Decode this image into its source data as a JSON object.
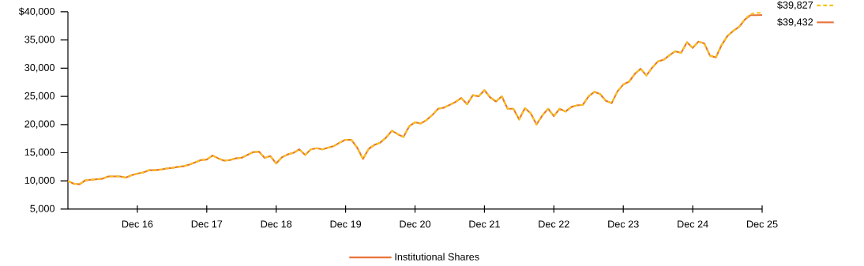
{
  "chart_data": {
    "type": "line",
    "x": [
      "2015-12",
      "2016-01",
      "2016-02",
      "2016-03",
      "2016-04",
      "2016-05",
      "2016-06",
      "2016-07",
      "2016-08",
      "2016-09",
      "2016-10",
      "2016-11",
      "2016-12",
      "2017-01",
      "2017-02",
      "2017-03",
      "2017-04",
      "2017-05",
      "2017-06",
      "2017-07",
      "2017-08",
      "2017-09",
      "2017-10",
      "2017-11",
      "2017-12",
      "2018-01",
      "2018-02",
      "2018-03",
      "2018-04",
      "2018-05",
      "2018-06",
      "2018-07",
      "2018-08",
      "2018-09",
      "2018-10",
      "2018-11",
      "2018-12",
      "2019-01",
      "2019-02",
      "2019-03",
      "2019-04",
      "2019-05",
      "2019-06",
      "2019-07",
      "2019-08",
      "2019-09",
      "2019-10",
      "2019-11",
      "2019-12",
      "2020-01",
      "2020-02",
      "2020-03",
      "2020-04",
      "2020-05",
      "2020-06",
      "2020-07",
      "2020-08",
      "2020-09",
      "2020-10",
      "2020-11",
      "2020-12",
      "2021-01",
      "2021-02",
      "2021-03",
      "2021-04",
      "2021-05",
      "2021-06",
      "2021-07",
      "2021-08",
      "2021-09",
      "2021-10",
      "2021-11",
      "2021-12",
      "2022-01",
      "2022-02",
      "2022-03",
      "2022-04",
      "2022-05",
      "2022-06",
      "2022-07",
      "2022-08",
      "2022-09",
      "2022-10",
      "2022-11",
      "2022-12",
      "2023-01",
      "2023-02",
      "2023-03",
      "2023-04",
      "2023-05",
      "2023-06",
      "2023-07",
      "2023-08",
      "2023-09",
      "2023-10",
      "2023-11",
      "2023-12",
      "2024-01",
      "2024-02",
      "2024-03",
      "2024-04",
      "2024-05",
      "2024-06",
      "2024-07",
      "2024-08",
      "2024-09",
      "2024-10",
      "2024-11",
      "2024-12",
      "2025-01",
      "2025-02",
      "2025-03",
      "2025-04",
      "2025-05",
      "2025-06",
      "2025-07",
      "2025-08",
      "2025-09",
      "2025-10",
      "2025-11",
      "2025-12"
    ],
    "series": [
      {
        "name": "Institutional Shares",
        "color": "#e8743b",
        "line_style": "solid",
        "values": [
          10000,
          9500,
          9400,
          10100,
          10200,
          10300,
          10400,
          10800,
          10800,
          10800,
          10600,
          11000,
          11300,
          11500,
          11900,
          11900,
          12000,
          12200,
          12300,
          12500,
          12600,
          12900,
          13300,
          13700,
          13800,
          14500,
          14000,
          13600,
          13700,
          14000,
          14100,
          14600,
          15100,
          15200,
          14100,
          14400,
          13100,
          14200,
          14700,
          15000,
          15600,
          14600,
          15600,
          15800,
          15600,
          15900,
          16200,
          16800,
          17300,
          17300,
          15900,
          13900,
          15700,
          16400,
          16800,
          17700,
          18900,
          18300,
          17800,
          19700,
          20400,
          20200,
          20800,
          21700,
          22800,
          23000,
          23500,
          24000,
          24700,
          23600,
          25200,
          25000,
          26100,
          24800,
          24100,
          25000,
          22800,
          22800,
          20900,
          22900,
          22000,
          20000,
          21600,
          22800,
          21500,
          22800,
          22300,
          23100,
          23400,
          23500,
          25000,
          25800,
          25400,
          24200,
          23800,
          25900,
          27100,
          27600,
          29000,
          29900,
          28700,
          30100,
          31200,
          31500,
          32300,
          33000,
          32700,
          34600,
          33600,
          34700,
          34400,
          32200,
          31900,
          34100,
          35700,
          36600,
          37300,
          38600,
          39400,
          39400,
          39432
        ]
      },
      {
        "color": "#f5c518",
        "line_style": "dashed",
        "values": [
          10000,
          9500,
          9400,
          10100,
          10200,
          10300,
          10400,
          10800,
          10800,
          10800,
          10600,
          11000,
          11300,
          11500,
          11900,
          11900,
          12000,
          12200,
          12300,
          12500,
          12600,
          12900,
          13300,
          13700,
          13800,
          14500,
          14000,
          13600,
          13700,
          14000,
          14100,
          14600,
          15100,
          15200,
          14100,
          14400,
          13100,
          14200,
          14700,
          15000,
          15600,
          14600,
          15600,
          15800,
          15600,
          15900,
          16200,
          16800,
          17300,
          17300,
          15900,
          13900,
          15700,
          16400,
          16800,
          17700,
          18900,
          18300,
          17800,
          19700,
          20400,
          20200,
          20800,
          21700,
          22800,
          23000,
          23500,
          24000,
          24700,
          23600,
          25200,
          25000,
          26100,
          24800,
          24100,
          25000,
          22800,
          22800,
          20900,
          22900,
          22000,
          20000,
          21600,
          22800,
          21500,
          22800,
          22300,
          23100,
          23400,
          23500,
          25000,
          25800,
          25400,
          24200,
          23800,
          25900,
          27100,
          27600,
          29000,
          29900,
          28700,
          30100,
          31200,
          31500,
          32300,
          33000,
          32700,
          34600,
          33600,
          34700,
          34400,
          32200,
          31900,
          34100,
          35700,
          36600,
          37300,
          38700,
          39600,
          39800,
          39827
        ]
      }
    ],
    "xlim": [
      "2015-12",
      "2025-12"
    ],
    "xticks": [
      {
        "value": "2016-12",
        "label": "Dec 16"
      },
      {
        "value": "2017-12",
        "label": "Dec 17"
      },
      {
        "value": "2018-12",
        "label": "Dec 18"
      },
      {
        "value": "2019-12",
        "label": "Dec 19"
      },
      {
        "value": "2020-12",
        "label": "Dec 20"
      },
      {
        "value": "2021-12",
        "label": "Dec 21"
      },
      {
        "value": "2022-12",
        "label": "Dec 22"
      },
      {
        "value": "2023-12",
        "label": "Dec 23"
      },
      {
        "value": "2024-12",
        "label": "Dec 24"
      },
      {
        "value": "2025-12",
        "label": "Dec 25"
      }
    ],
    "ylim": [
      5000,
      40000
    ],
    "yticks": [
      {
        "value": 5000,
        "label": "5,000"
      },
      {
        "value": 10000,
        "label": "10,000"
      },
      {
        "value": 15000,
        "label": "15,000"
      },
      {
        "value": 20000,
        "label": "20,000"
      },
      {
        "value": 25000,
        "label": "25,000"
      },
      {
        "value": 30000,
        "label": "30,000"
      },
      {
        "value": 35000,
        "label": "35,000"
      },
      {
        "value": 40000,
        "label": "$40,000"
      }
    ],
    "annotations": [
      {
        "text": "$39,827",
        "x": "2025-12",
        "y": 39827
      },
      {
        "text": "$39,432",
        "x": "2025-12",
        "y": 39432
      }
    ],
    "grid": false,
    "legend": "bottom"
  }
}
